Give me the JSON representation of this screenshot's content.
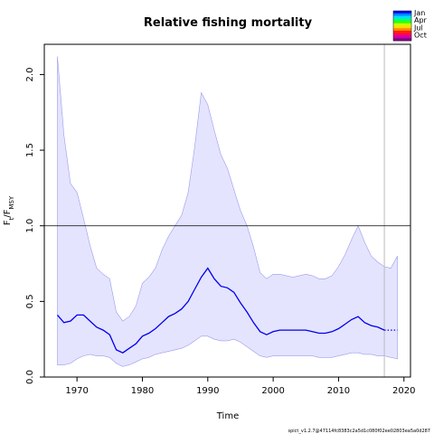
{
  "chart_data": {
    "type": "line",
    "title": "Relative fishing mortality",
    "xlabel": "Time",
    "ylabel": "F_t/F_MSY",
    "xlim": [
      1965,
      2021
    ],
    "ylim": [
      0,
      2.2
    ],
    "x_ticks": [
      1970,
      1980,
      1990,
      2000,
      2010,
      2020
    ],
    "y_ticks": [
      0.0,
      0.5,
      1.0,
      1.5,
      2.0
    ],
    "x_tick_labels": [
      "1970",
      "1980",
      "1990",
      "2000",
      "2010",
      "2020"
    ],
    "y_tick_labels": [
      "0.0",
      "0.5",
      "1.0",
      "1.5",
      "2.0"
    ],
    "reference_line": 1.0,
    "vertical_line_x": 2017,
    "grid": false,
    "series": [
      {
        "role": "estimate",
        "color": "#0000ee",
        "x": [
          1967,
          1968,
          1969,
          1970,
          1971,
          1972,
          1973,
          1974,
          1975,
          1976,
          1977,
          1978,
          1979,
          1980,
          1981,
          1982,
          1983,
          1984,
          1985,
          1986,
          1987,
          1988,
          1989,
          1990,
          1991,
          1992,
          1993,
          1994,
          1995,
          1996,
          1997,
          1998,
          1999,
          2000,
          2001,
          2002,
          2003,
          2004,
          2005,
          2006,
          2007,
          2008,
          2009,
          2010,
          2011,
          2012,
          2013,
          2014,
          2015,
          2016,
          2017
        ],
        "y": [
          0.41,
          0.36,
          0.37,
          0.41,
          0.41,
          0.37,
          0.33,
          0.31,
          0.28,
          0.18,
          0.16,
          0.19,
          0.22,
          0.27,
          0.29,
          0.32,
          0.36,
          0.4,
          0.42,
          0.45,
          0.5,
          0.58,
          0.66,
          0.72,
          0.65,
          0.6,
          0.59,
          0.56,
          0.49,
          0.43,
          0.36,
          0.3,
          0.28,
          0.3,
          0.31,
          0.31,
          0.31,
          0.31,
          0.31,
          0.3,
          0.29,
          0.29,
          0.3,
          0.32,
          0.35,
          0.38,
          0.4,
          0.36,
          0.34,
          0.33,
          0.31
        ]
      },
      {
        "role": "forecast",
        "style": "dotted",
        "color": "#0000ee",
        "x": [
          2017,
          2018,
          2019
        ],
        "y": [
          0.31,
          0.31,
          0.31
        ]
      }
    ],
    "confidence_band": {
      "color": "#e4e4ff",
      "x": [
        1967,
        1968,
        1969,
        1970,
        1971,
        1972,
        1973,
        1974,
        1975,
        1976,
        1977,
        1978,
        1979,
        1980,
        1981,
        1982,
        1983,
        1984,
        1985,
        1986,
        1987,
        1988,
        1989,
        1990,
        1991,
        1992,
        1993,
        1994,
        1995,
        1996,
        1997,
        1998,
        1999,
        2000,
        2001,
        2002,
        2003,
        2004,
        2005,
        2006,
        2007,
        2008,
        2009,
        2010,
        2011,
        2012,
        2013,
        2014,
        2015,
        2016,
        2017,
        2018,
        2019
      ],
      "upper": [
        2.12,
        1.6,
        1.28,
        1.22,
        1.05,
        0.87,
        0.72,
        0.68,
        0.65,
        0.43,
        0.37,
        0.4,
        0.47,
        0.62,
        0.66,
        0.72,
        0.84,
        0.93,
        1.0,
        1.07,
        1.22,
        1.52,
        1.88,
        1.8,
        1.63,
        1.47,
        1.38,
        1.24,
        1.1,
        1.0,
        0.86,
        0.69,
        0.65,
        0.68,
        0.68,
        0.67,
        0.66,
        0.67,
        0.68,
        0.67,
        0.65,
        0.65,
        0.67,
        0.73,
        0.81,
        0.91,
        1.0,
        0.89,
        0.8,
        0.76,
        0.73,
        0.72,
        0.8
      ],
      "lower": [
        0.08,
        0.08,
        0.09,
        0.12,
        0.14,
        0.15,
        0.14,
        0.14,
        0.13,
        0.09,
        0.07,
        0.08,
        0.1,
        0.12,
        0.13,
        0.15,
        0.16,
        0.17,
        0.18,
        0.19,
        0.21,
        0.24,
        0.27,
        0.27,
        0.25,
        0.24,
        0.24,
        0.25,
        0.23,
        0.2,
        0.17,
        0.14,
        0.13,
        0.14,
        0.14,
        0.14,
        0.14,
        0.14,
        0.14,
        0.14,
        0.13,
        0.13,
        0.13,
        0.14,
        0.15,
        0.16,
        0.16,
        0.15,
        0.15,
        0.14,
        0.14,
        0.13,
        0.12
      ]
    },
    "legend": {
      "position": "top-right",
      "entries": [
        "Jan",
        "Apr",
        "Jul",
        "Oct"
      ],
      "colors": [
        "#0000ff",
        "#0088ff",
        "#00ddff",
        "#00ff88",
        "#33ff00",
        "#ccff00",
        "#ffdd00",
        "#ff8800",
        "#ff2200",
        "#ff0066",
        "#cc00aa",
        "#880088"
      ]
    }
  },
  "footer": "spict_v1.2.7@47114fc8383c2a5d1c080f02ee02803ea5a0d287"
}
